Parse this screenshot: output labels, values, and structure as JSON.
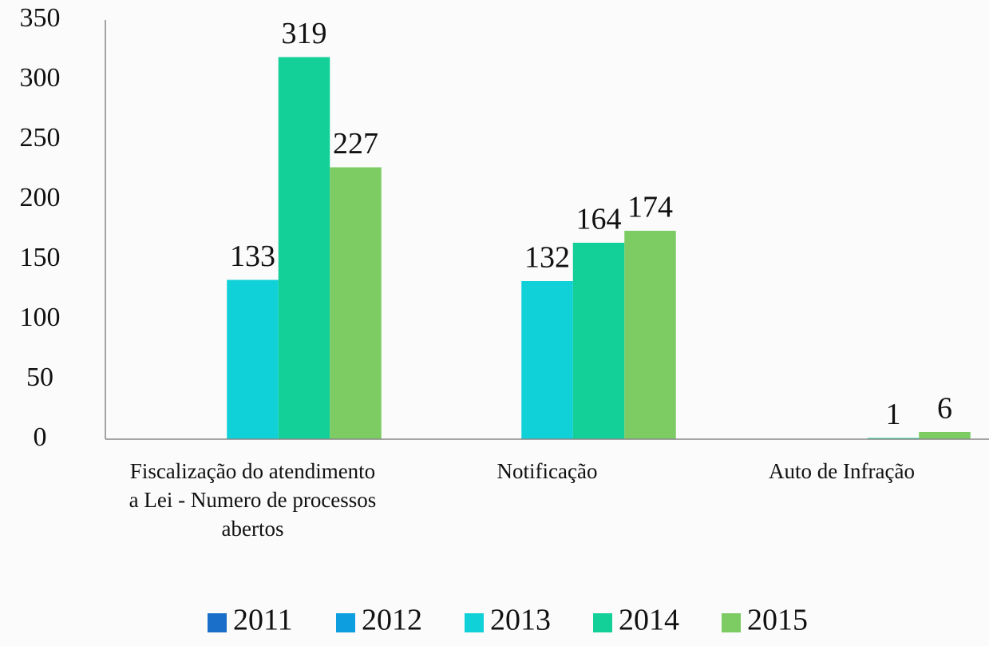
{
  "chart_data": {
    "type": "bar",
    "categories": [
      "Fiscalização do atendimento a Lei - Numero de processos abertos",
      "Notificação",
      "Auto de Infração"
    ],
    "series": [
      {
        "name": "2011",
        "color": "#1a6fc9",
        "values": [
          null,
          null,
          null
        ]
      },
      {
        "name": "2012",
        "color": "#0d9ee0",
        "values": [
          null,
          null,
          null
        ]
      },
      {
        "name": "2013",
        "color": "#10d0d8",
        "values": [
          133,
          132,
          null
        ]
      },
      {
        "name": "2014",
        "color": "#13cf98",
        "values": [
          319,
          164,
          1
        ]
      },
      {
        "name": "2015",
        "color": "#7ccc63",
        "values": [
          227,
          174,
          6
        ]
      }
    ],
    "ylim": [
      0,
      350
    ],
    "yticks": [
      0,
      50,
      100,
      150,
      200,
      250,
      300,
      350
    ],
    "legend": "bottom",
    "grid": false
  }
}
